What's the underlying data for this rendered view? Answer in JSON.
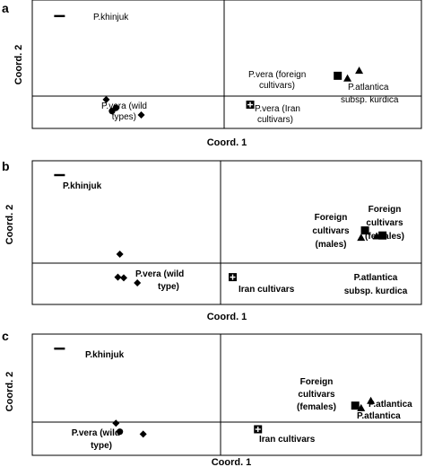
{
  "chart_data": [
    {
      "type": "scatter",
      "panel": "a",
      "xlabel": "Coord. 1",
      "ylabel": "Coord. 2",
      "xlim": [
        -1,
        1
      ],
      "ylim": [
        -1,
        1
      ],
      "grid": false,
      "points": [
        {
          "x": -0.86,
          "y": 0.75,
          "marker": "dash"
        },
        {
          "x": -0.62,
          "y": -0.55,
          "marker": "diamond"
        },
        {
          "x": -0.57,
          "y": -0.68,
          "marker": "circle"
        },
        {
          "x": -0.59,
          "y": -0.73,
          "marker": "circle"
        },
        {
          "x": -0.44,
          "y": -0.79,
          "marker": "diamond"
        },
        {
          "x": 0.12,
          "y": -0.63,
          "marker": "plus-box"
        },
        {
          "x": 0.57,
          "y": -0.18,
          "marker": "square"
        },
        {
          "x": 0.62,
          "y": -0.22,
          "marker": "triangle"
        },
        {
          "x": 0.68,
          "y": -0.1,
          "marker": "triangle"
        }
      ],
      "labels": [
        {
          "lines": [
            "P.khinjuk"
          ],
          "bold": false
        },
        {
          "lines": [
            "P.vera (wild",
            "types)"
          ],
          "bold": false
        },
        {
          "lines": [
            "P.vera (Iran",
            "cultivars)"
          ],
          "bold": false
        },
        {
          "lines": [
            "P.vera (foreign",
            "cultivars)"
          ],
          "bold": false
        },
        {
          "lines": [
            "P.atlantica",
            "subsp. kurdica"
          ],
          "bold": false
        }
      ]
    },
    {
      "type": "scatter",
      "panel": "b",
      "xlabel": "Coord. 1",
      "ylabel": "Coord. 2",
      "xlim": [
        -1,
        1
      ],
      "ylim": [
        -1,
        1
      ],
      "grid": false,
      "points": [
        {
          "x": -0.86,
          "y": 0.8,
          "marker": "dash"
        },
        {
          "x": -0.55,
          "y": -0.3,
          "marker": "diamond"
        },
        {
          "x": -0.56,
          "y": -0.62,
          "marker": "diamond"
        },
        {
          "x": -0.53,
          "y": -0.63,
          "marker": "diamond"
        },
        {
          "x": -0.46,
          "y": -0.7,
          "marker": "diamond"
        },
        {
          "x": 0.03,
          "y": -0.62,
          "marker": "plus-box"
        },
        {
          "x": 0.71,
          "y": 0.03,
          "marker": "square"
        },
        {
          "x": 0.69,
          "y": -0.07,
          "marker": "triangle"
        },
        {
          "x": 0.77,
          "y": -0.05,
          "marker": "triangle"
        },
        {
          "x": 0.8,
          "y": -0.04,
          "marker": "square"
        }
      ],
      "labels": [
        {
          "lines": [
            "P.khinjuk"
          ],
          "bold": true
        },
        {
          "lines": [
            "P.vera (wild",
            "type)"
          ],
          "bold": true
        },
        {
          "lines": [
            "Iran cultivars"
          ],
          "bold": true
        },
        {
          "lines": [
            "Foreign",
            "cultivars",
            "(males)"
          ],
          "bold": true
        },
        {
          "lines": [
            "Foreign",
            "cultivars",
            "(females)"
          ],
          "bold": true
        },
        {
          "lines": [
            "P.atlantica",
            "subsp. kurdica"
          ],
          "bold": true
        }
      ]
    },
    {
      "type": "scatter",
      "panel": "c",
      "xlabel": "Coord. 1",
      "ylabel": "Coord. 2",
      "xlim": [
        -1,
        1
      ],
      "ylim": [
        -1,
        1
      ],
      "grid": false,
      "points": [
        {
          "x": -0.86,
          "y": 0.76,
          "marker": "dash"
        },
        {
          "x": -0.57,
          "y": -0.47,
          "marker": "diamond"
        },
        {
          "x": -0.55,
          "y": -0.61,
          "marker": "circle"
        },
        {
          "x": -0.43,
          "y": -0.65,
          "marker": "diamond"
        },
        {
          "x": 0.16,
          "y": -0.57,
          "marker": "plus-box"
        },
        {
          "x": 0.66,
          "y": -0.18,
          "marker": "square"
        },
        {
          "x": 0.69,
          "y": -0.22,
          "marker": "triangle"
        },
        {
          "x": 0.74,
          "y": -0.1,
          "marker": "triangle"
        }
      ],
      "labels": [
        {
          "lines": [
            "P.khinjuk"
          ],
          "bold": true
        },
        {
          "lines": [
            "P.vera (wild",
            "type)"
          ],
          "bold": true
        },
        {
          "lines": [
            "Iran cultivars"
          ],
          "bold": true
        },
        {
          "lines": [
            "Foreign",
            "cultivars",
            "(females)"
          ],
          "bold": true
        },
        {
          "lines": [
            "P.atlantica"
          ],
          "bold": true
        },
        {
          "lines": [
            "P.atlantica"
          ],
          "bold": true
        }
      ]
    }
  ]
}
